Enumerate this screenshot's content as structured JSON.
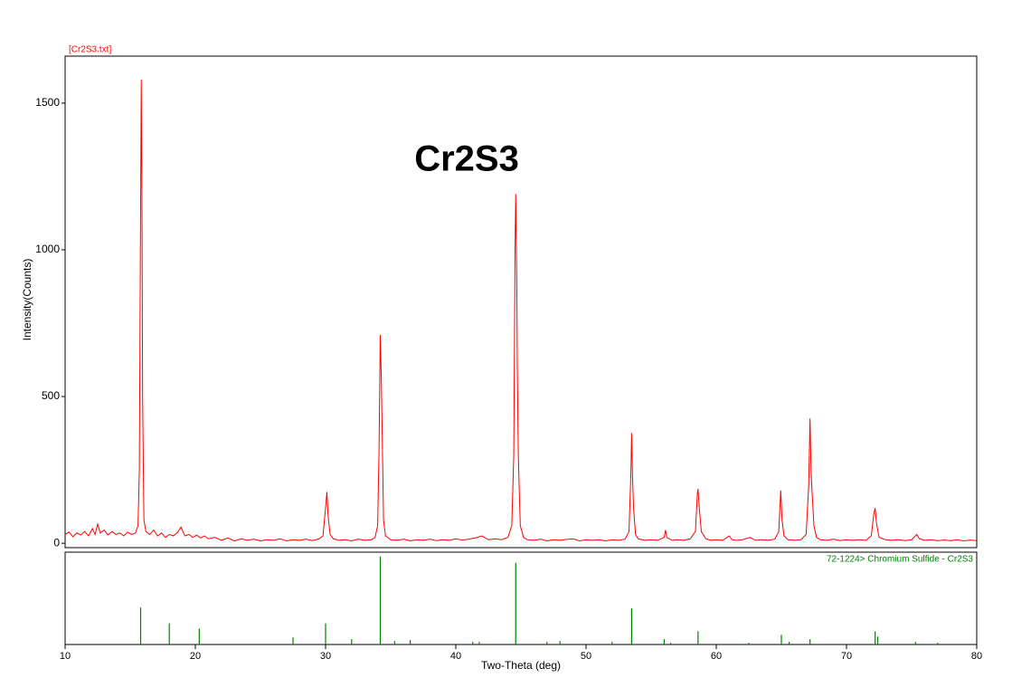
{
  "chart_data": [
    {
      "type": "line",
      "subtitle": "[Cr2S3.txt]",
      "annotation": "Cr2S3",
      "y_label": "Intensity(Counts)",
      "xlim": [
        10,
        80
      ],
      "ylim": [
        -15,
        1660
      ],
      "yticks": [
        0,
        500,
        1000,
        1500
      ],
      "x": [
        10,
        10.3,
        10.6,
        10.9,
        11.2,
        11.5,
        11.8,
        12.1,
        12.3,
        12.5,
        12.7,
        13,
        13.3,
        13.6,
        13.9,
        14.2,
        14.5,
        14.8,
        15.1,
        15.4,
        15.6,
        15.7,
        15.78,
        15.85,
        15.9,
        15.95,
        16.05,
        16.2,
        16.5,
        16.8,
        17.1,
        17.4,
        17.7,
        18,
        18.3,
        18.6,
        18.9,
        19.2,
        19.5,
        19.8,
        20.1,
        20.4,
        20.7,
        21,
        21.5,
        22,
        22.5,
        23,
        23.5,
        24,
        24.5,
        25,
        25.5,
        26,
        26.5,
        27,
        27.5,
        28,
        28.5,
        29,
        29.5,
        29.8,
        30,
        30.1,
        30.2,
        30.35,
        30.6,
        31,
        31.5,
        32,
        32.5,
        33,
        33.5,
        33.8,
        34,
        34.1,
        34.2,
        34.28,
        34.35,
        34.45,
        34.6,
        35,
        35.5,
        36,
        36.5,
        37,
        37.5,
        38,
        38.5,
        39,
        39.5,
        40,
        40.5,
        41,
        41.5,
        42,
        42.5,
        43,
        43.5,
        44,
        44.3,
        44.45,
        44.55,
        44.6,
        44.68,
        44.72,
        44.8,
        44.95,
        45.2,
        45.5,
        46,
        46.5,
        47,
        47.5,
        48,
        48.5,
        49,
        49.5,
        50,
        50.5,
        51,
        51.5,
        52,
        52.5,
        53,
        53.3,
        53.45,
        53.5,
        53.58,
        53.65,
        53.8,
        54,
        54.5,
        55,
        55.5,
        56,
        56.1,
        56.2,
        56.6,
        57,
        57.5,
        58,
        58.4,
        58.55,
        58.6,
        58.7,
        58.85,
        59.2,
        59.6,
        60,
        60.5,
        61,
        61.2,
        61.6,
        62,
        62.6,
        63,
        63.5,
        64,
        64.5,
        64.8,
        64.95,
        65.05,
        65.2,
        65.5,
        66,
        66.5,
        66.9,
        67.1,
        67.2,
        67.28,
        67.35,
        67.5,
        67.7,
        68,
        68.5,
        69,
        69.5,
        70,
        70.5,
        71,
        71.5,
        71.9,
        72.1,
        72.2,
        72.3,
        72.5,
        73,
        73.5,
        74,
        74.5,
        75,
        75.4,
        75.6,
        76,
        76.5,
        77,
        77.5,
        78,
        78.5,
        79,
        79.5,
        80
      ],
      "series": [
        {
          "color": "#ff0000",
          "values": [
            30,
            38,
            22,
            35,
            28,
            40,
            25,
            50,
            30,
            65,
            35,
            45,
            28,
            40,
            30,
            35,
            25,
            38,
            30,
            35,
            60,
            250,
            1000,
            1580,
            1180,
            500,
            80,
            40,
            30,
            45,
            25,
            35,
            20,
            30,
            25,
            35,
            55,
            25,
            30,
            20,
            28,
            18,
            25,
            15,
            20,
            10,
            18,
            8,
            15,
            10,
            14,
            8,
            12,
            10,
            15,
            8,
            12,
            10,
            14,
            9,
            15,
            25,
            120,
            175,
            90,
            30,
            15,
            10,
            12,
            8,
            14,
            10,
            12,
            20,
            60,
            300,
            710,
            560,
            370,
            80,
            25,
            12,
            10,
            14,
            8,
            12,
            10,
            14,
            9,
            12,
            10,
            15,
            11,
            14,
            18,
            25,
            12,
            15,
            12,
            20,
            60,
            300,
            1000,
            1190,
            900,
            620,
            300,
            60,
            20,
            12,
            10,
            14,
            8,
            12,
            10,
            13,
            15,
            8,
            12,
            10,
            12,
            8,
            12,
            10,
            14,
            40,
            250,
            375,
            210,
            120,
            30,
            15,
            10,
            12,
            10,
            20,
            45,
            20,
            10,
            12,
            10,
            15,
            40,
            170,
            185,
            120,
            40,
            15,
            10,
            12,
            10,
            25,
            12,
            10,
            12,
            20,
            10,
            12,
            10,
            14,
            40,
            180,
            80,
            25,
            12,
            10,
            12,
            30,
            200,
            425,
            245,
            180,
            60,
            20,
            12,
            10,
            14,
            9,
            12,
            10,
            12,
            10,
            25,
            100,
            120,
            70,
            20,
            12,
            10,
            12,
            9,
            12,
            30,
            15,
            10,
            12,
            9,
            11,
            9,
            12,
            8,
            11,
            9
          ]
        }
      ]
    },
    {
      "type": "stick",
      "x_label": "Two-Theta (deg)",
      "xlim": [
        10,
        80
      ],
      "ylim": [
        0,
        105
      ],
      "xticks": [
        10,
        20,
        30,
        40,
        50,
        60,
        70,
        80
      ],
      "series": [
        {
          "name": "72-1224> Chromium Sulfide - Cr2S3",
          "color": "#008000",
          "x": [
            15.8,
            18,
            20.3,
            27.5,
            30,
            32,
            34.2,
            35.3,
            36.5,
            41.3,
            41.8,
            44.6,
            47,
            48,
            52,
            53.5,
            56,
            56.5,
            58.6,
            62.5,
            65,
            65.6,
            67.2,
            72.2,
            72.4,
            75.3,
            77
          ],
          "values": [
            42,
            24,
            18,
            8,
            24,
            6,
            100,
            4,
            5,
            3,
            3,
            93,
            3,
            4,
            3,
            41,
            6,
            2,
            15,
            2,
            11,
            3,
            6,
            15,
            9,
            3,
            2
          ]
        }
      ]
    }
  ]
}
